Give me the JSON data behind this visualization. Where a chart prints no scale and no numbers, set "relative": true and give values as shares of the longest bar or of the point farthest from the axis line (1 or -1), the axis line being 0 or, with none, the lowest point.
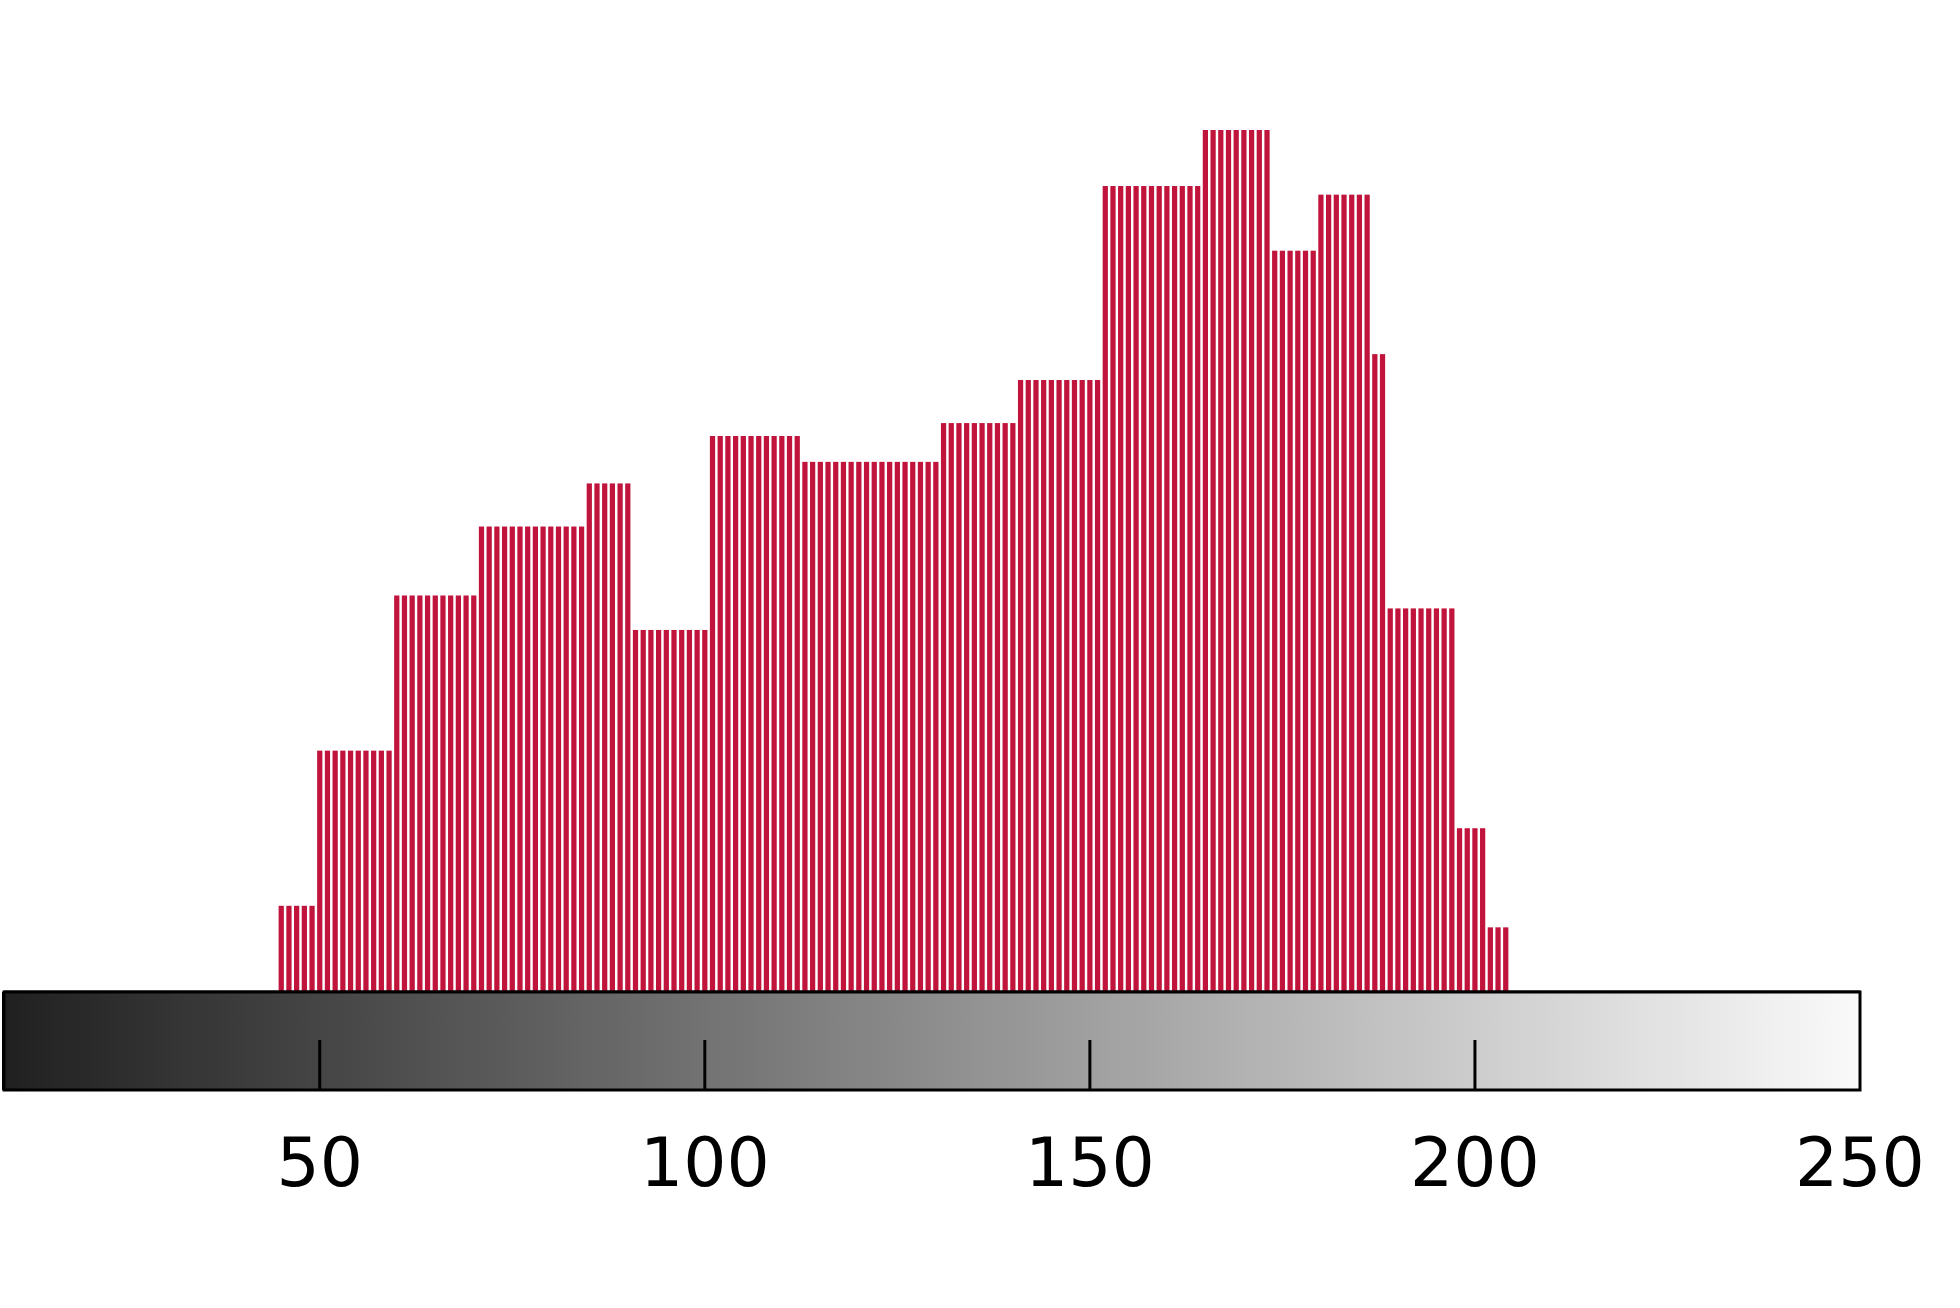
{
  "chart_data": {
    "type": "bar",
    "relative": true,
    "color": "#c0143c",
    "x": [
      45,
      46,
      47,
      48,
      49,
      50,
      51,
      52,
      53,
      54,
      55,
      56,
      57,
      58,
      59,
      60,
      61,
      62,
      63,
      64,
      65,
      66,
      67,
      68,
      69,
      70,
      71,
      72,
      73,
      74,
      75,
      76,
      77,
      78,
      79,
      80,
      81,
      82,
      83,
      84,
      85,
      86,
      87,
      88,
      89,
      90,
      91,
      92,
      93,
      94,
      95,
      96,
      97,
      98,
      99,
      100,
      101,
      102,
      103,
      104,
      105,
      106,
      107,
      108,
      109,
      110,
      111,
      112,
      113,
      114,
      115,
      116,
      117,
      118,
      119,
      120,
      121,
      122,
      123,
      124,
      125,
      126,
      127,
      128,
      129,
      130,
      131,
      132,
      133,
      134,
      135,
      136,
      137,
      138,
      139,
      140,
      141,
      142,
      143,
      144,
      145,
      146,
      147,
      148,
      149,
      150,
      151,
      152,
      153,
      154,
      155,
      156,
      157,
      158,
      159,
      160,
      161,
      162,
      163,
      164,
      165,
      166,
      167,
      168,
      169,
      170,
      171,
      172,
      173,
      174,
      175,
      176,
      177,
      178,
      179,
      180,
      181,
      182,
      183,
      184,
      185,
      186,
      187,
      188,
      189,
      190,
      191,
      192,
      193,
      194,
      195,
      196,
      197,
      198,
      199,
      200,
      201,
      202,
      203,
      204
    ],
    "values": [
      0.1,
      0.1,
      0.1,
      0.1,
      0.1,
      0.28,
      0.28,
      0.28,
      0.28,
      0.28,
      0.28,
      0.28,
      0.28,
      0.28,
      0.28,
      0.46,
      0.46,
      0.46,
      0.46,
      0.46,
      0.46,
      0.46,
      0.46,
      0.46,
      0.46,
      0.46,
      0.54,
      0.54,
      0.54,
      0.54,
      0.54,
      0.54,
      0.54,
      0.54,
      0.54,
      0.54,
      0.54,
      0.54,
      0.54,
      0.54,
      0.59,
      0.59,
      0.59,
      0.59,
      0.59,
      0.59,
      0.42,
      0.42,
      0.42,
      0.42,
      0.42,
      0.42,
      0.42,
      0.42,
      0.42,
      0.42,
      0.645,
      0.645,
      0.645,
      0.645,
      0.645,
      0.645,
      0.645,
      0.645,
      0.645,
      0.645,
      0.645,
      0.645,
      0.615,
      0.615,
      0.615,
      0.615,
      0.615,
      0.615,
      0.615,
      0.615,
      0.615,
      0.615,
      0.615,
      0.615,
      0.615,
      0.615,
      0.615,
      0.615,
      0.615,
      0.615,
      0.66,
      0.66,
      0.66,
      0.66,
      0.66,
      0.66,
      0.66,
      0.66,
      0.66,
      0.66,
      0.71,
      0.71,
      0.71,
      0.71,
      0.71,
      0.71,
      0.71,
      0.71,
      0.71,
      0.71,
      0.71,
      0.935,
      0.935,
      0.935,
      0.935,
      0.935,
      0.935,
      0.935,
      0.935,
      0.935,
      0.935,
      0.935,
      0.935,
      0.935,
      1,
      1,
      1,
      1,
      1,
      1,
      1,
      1,
      1,
      0.86,
      0.86,
      0.86,
      0.86,
      0.86,
      0.86,
      0.925,
      0.925,
      0.925,
      0.925,
      0.925,
      0.925,
      0.925,
      0.74,
      0.74,
      0.445,
      0.445,
      0.445,
      0.445,
      0.445,
      0.445,
      0.445,
      0.445,
      0.445,
      0.19,
      0.19,
      0.19,
      0.19,
      0.075,
      0.075,
      0.075
    ],
    "xlim": [
      9,
      250
    ],
    "xticks": [
      50,
      100,
      150,
      200,
      250
    ]
  }
}
